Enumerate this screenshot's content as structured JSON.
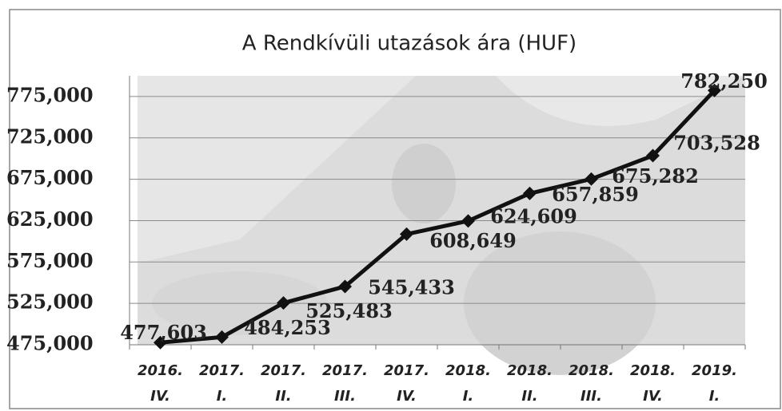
{
  "chart_data": {
    "type": "line",
    "title": "A Rendkívüli utazások ára (HUF)",
    "categories": [
      "2016. IV.",
      "2017. I.",
      "2017. II.",
      "2017. III.",
      "2017. IV.",
      "2018. I.",
      "2018. II.",
      "2018. III.",
      "2018. IV.",
      "2019. I."
    ],
    "series": [
      {
        "color": "#111111",
        "values": [
          477603,
          484253,
          525483,
          545433,
          608649,
          624609,
          657859,
          675282,
          703528,
          782250
        ],
        "value_labels": [
          "477,603",
          "484,253",
          "525,483",
          "545,433",
          "608,649",
          "624,609",
          "657,859",
          "675,282",
          "703,528",
          "782,250"
        ]
      }
    ],
    "ylim": [
      475000,
      800000
    ],
    "yticks": [
      {
        "value": 475000,
        "label": "475,000"
      },
      {
        "value": 525000,
        "label": "525,000"
      },
      {
        "value": 575000,
        "label": "575,000"
      },
      {
        "value": 625000,
        "label": "625,000"
      },
      {
        "value": 675000,
        "label": "675,000"
      },
      {
        "value": 725000,
        "label": "725,000"
      },
      {
        "value": 775000,
        "label": "775,000"
      }
    ],
    "grid": true
  }
}
